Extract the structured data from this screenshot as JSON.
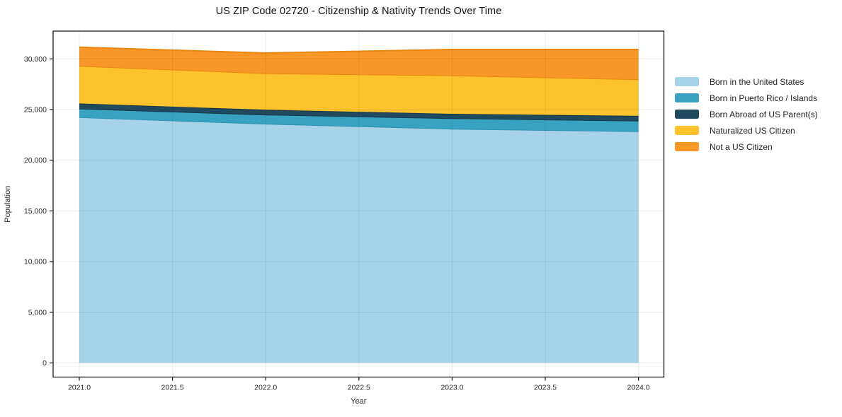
{
  "title": "US ZIP Code 02720 - Citizenship & Nativity Trends Over Time",
  "chart_data": {
    "type": "area",
    "stacked": true,
    "title": "US ZIP Code 02720 - Citizenship & Nativity Trends Over Time",
    "xlabel": "Year",
    "ylabel": "Population",
    "x": [
      2021,
      2022,
      2023,
      2024
    ],
    "series": [
      {
        "name": "Born in the United States",
        "color": "#A6D3E8",
        "edge": "#2E90B0",
        "values": [
          24250,
          23600,
          23100,
          22850
        ]
      },
      {
        "name": "Born in Puerto Rico / Islands",
        "color": "#39A2C2",
        "edge": "#16384A",
        "values": [
          850,
          900,
          1040,
          1050
        ]
      },
      {
        "name": "Born Abroad of US Parent(s)",
        "color": "#1F4A5F",
        "edge": "#16384A",
        "values": [
          500,
          480,
          440,
          480
        ]
      },
      {
        "name": "Naturalized US Citizen",
        "color": "#FCC32D",
        "edge": "#E8860F",
        "values": [
          3700,
          3600,
          3790,
          3600
        ]
      },
      {
        "name": "Not a US Citizen",
        "color": "#F79727",
        "edge": "#E8860F",
        "values": [
          1850,
          2000,
          2560,
          2950
        ]
      }
    ],
    "x_ticks": [
      {
        "v": 2021.0,
        "label": "2021.0"
      },
      {
        "v": 2021.5,
        "label": "2021.5"
      },
      {
        "v": 2022.0,
        "label": "2022.0"
      },
      {
        "v": 2022.5,
        "label": "2022.5"
      },
      {
        "v": 2023.0,
        "label": "2023.0"
      },
      {
        "v": 2023.5,
        "label": "2023.5"
      },
      {
        "v": 2024.0,
        "label": "2024.0"
      }
    ],
    "y_ticks": [
      {
        "v": 0,
        "label": "0"
      },
      {
        "v": 5000,
        "label": "5,000"
      },
      {
        "v": 10000,
        "label": "10,000"
      },
      {
        "v": 15000,
        "label": "15,000"
      },
      {
        "v": 20000,
        "label": "20,000"
      },
      {
        "v": 25000,
        "label": "25,000"
      },
      {
        "v": 30000,
        "label": "30,000"
      }
    ],
    "xlim": [
      2020.86,
      2024.14
    ],
    "ylim": [
      -1400,
      32740
    ],
    "grid": true,
    "legend_position": "right"
  }
}
